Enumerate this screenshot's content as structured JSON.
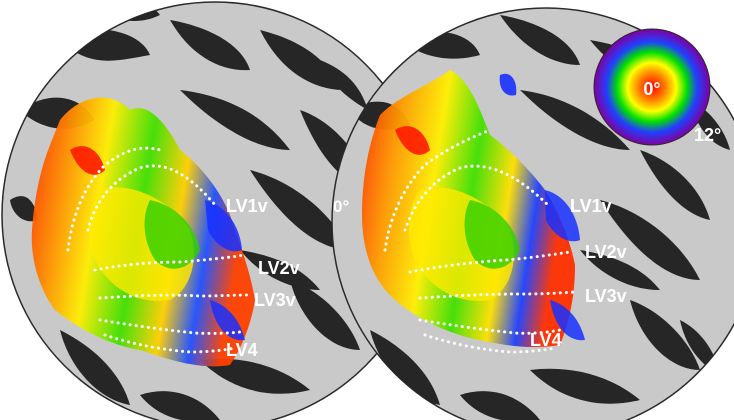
{
  "left_labels": {
    "lv1v": "LV1v",
    "lv2v": "LV2v",
    "lv3v": "LV3v",
    "lv4": "LV4"
  },
  "right_labels": {
    "lv1v": "LV1v",
    "lv2v": "LV2v",
    "lv3v": "LV3v",
    "lv4": "LV4"
  },
  "colorbar": {
    "center_label": "0°",
    "edge_label": "12°"
  },
  "midline_label": "0°",
  "colors": {
    "gyri": "#c9c9c9",
    "sulci": "#262626",
    "boundary_dots": "#ffffff",
    "label_text": "#ffffff"
  }
}
